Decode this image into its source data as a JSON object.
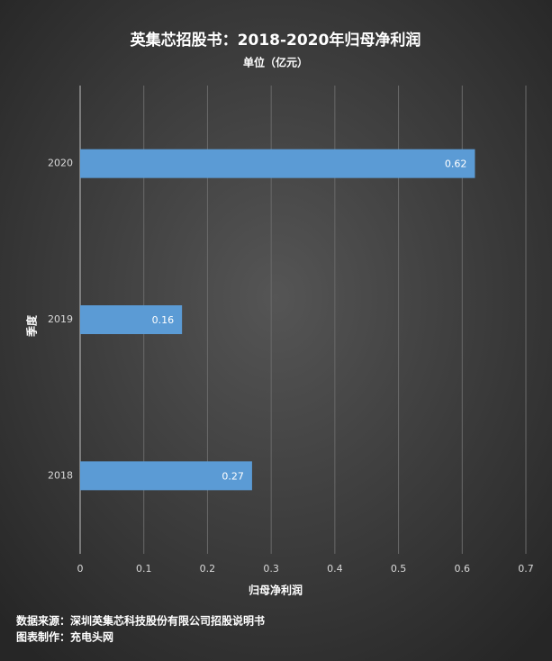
{
  "chart_data": {
    "type": "bar",
    "orientation": "horizontal",
    "title": "英集芯招股书：2018-2020年归母净利润",
    "subtitle": "单位（亿元）",
    "x_label": "归母净利润",
    "y_label": "季度",
    "categories": [
      "2020",
      "2019",
      "2018"
    ],
    "values": [
      0.62,
      0.16,
      0.27
    ],
    "color": "#5b9bd5",
    "xlim": [
      0,
      0.7
    ],
    "xticks": [
      0,
      0.1,
      0.2,
      0.3,
      0.4,
      0.5,
      0.6,
      0.7
    ],
    "grid": true,
    "source": "数据来源：深圳英集芯科技股份有限公司招股说明书",
    "credit": "图表制作：充电头网"
  }
}
